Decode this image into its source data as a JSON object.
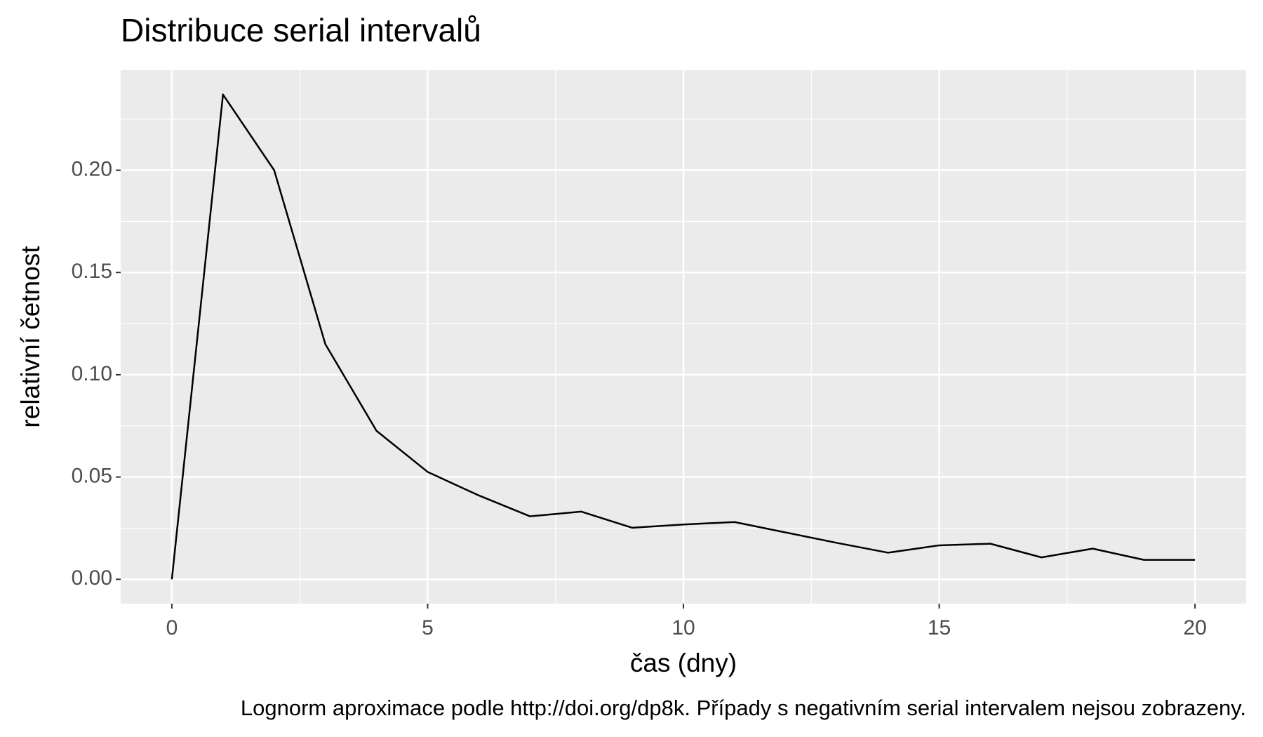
{
  "chart_data": {
    "type": "line",
    "title": "Distribuce serial intervalů",
    "x_label": "čas (dny)",
    "y_label": "relativní četnost",
    "caption": "Lognorm aproximace podle http://doi.org/dp8k. Případy s negativním serial intervalem nejsou zobrazeny.",
    "x": [
      0,
      1,
      2,
      3,
      4,
      5,
      6,
      7,
      8,
      9,
      10,
      11,
      12,
      13,
      14,
      15,
      16,
      17,
      18,
      19,
      20
    ],
    "series": [
      {
        "color": "#000000",
        "values": [
          0,
          0.237,
          0.2,
          0.115,
          0.0726,
          0.0525,
          0.041,
          0.0308,
          0.0331,
          0.0252,
          0.0268,
          0.028,
          0.0229,
          0.0178,
          0.013,
          0.0166,
          0.0174,
          0.0107,
          0.015,
          0.0095,
          0.0095
        ]
      }
    ],
    "xlim": [
      -1,
      21
    ],
    "ylim": [
      -0.0119,
      0.2489
    ],
    "xticks": [
      0,
      5,
      10,
      15,
      20
    ],
    "yticks": [
      {
        "value": 0,
        "label": "0.00"
      },
      {
        "value": 0.05,
        "label": "0.05"
      },
      {
        "value": 0.1,
        "label": "0.10"
      },
      {
        "value": 0.15,
        "label": "0.15"
      },
      {
        "value": 0.2,
        "label": "0.20"
      }
    ],
    "xminorticks": [
      2.5,
      7.5,
      12.5,
      17.5
    ],
    "yminorticks": [
      0.025,
      0.075,
      0.125,
      0.175,
      0.225
    ],
    "grid": true
  }
}
